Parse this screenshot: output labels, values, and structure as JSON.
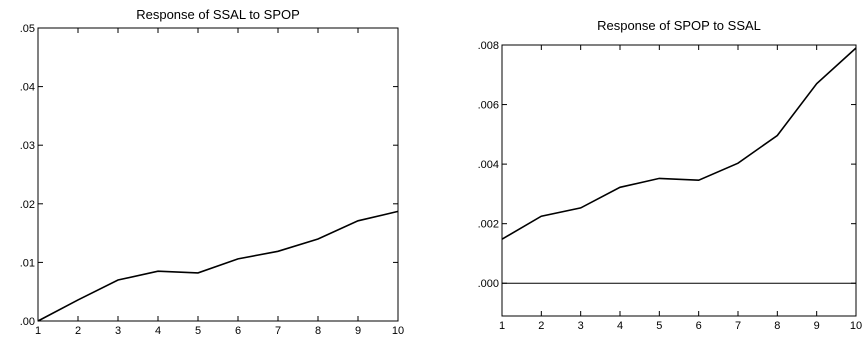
{
  "chart_data": [
    {
      "type": "line",
      "title": "Response of SSAL to SPOP",
      "x": [
        1,
        2,
        3,
        4,
        5,
        6,
        7,
        8,
        9,
        10
      ],
      "x_tick_labels": [
        "1",
        "2",
        "3",
        "4",
        "5",
        "6",
        "7",
        "8",
        "9",
        "10"
      ],
      "y_tick_values": [
        0,
        0.01,
        0.02,
        0.03,
        0.04,
        0.05
      ],
      "y_tick_labels": [
        ".00",
        ".01",
        ".02",
        ".03",
        ".04",
        ".05"
      ],
      "ylim": [
        0,
        0.05
      ],
      "series": [
        {
          "values": [
            0.0,
            0.0036,
            0.007,
            0.0085,
            0.0082,
            0.0106,
            0.0119,
            0.014,
            0.0171,
            0.0187
          ]
        }
      ],
      "zero_line": false,
      "grid": false,
      "line_color": "#000000"
    },
    {
      "type": "line",
      "title": "Response of SPOP to SSAL",
      "x": [
        1,
        2,
        3,
        4,
        5,
        6,
        7,
        8,
        9,
        10
      ],
      "x_tick_labels": [
        "1",
        "2",
        "3",
        "4",
        "5",
        "6",
        "7",
        "8",
        "9",
        "10"
      ],
      "y_tick_values": [
        0,
        0.002,
        0.004,
        0.006,
        0.008
      ],
      "y_tick_labels": [
        ".000",
        ".002",
        ".004",
        ".006",
        ".008"
      ],
      "ylim": [
        -0.0011,
        0.008
      ],
      "series": [
        {
          "values": [
            0.00148,
            0.00225,
            0.00253,
            0.00322,
            0.00352,
            0.00346,
            0.00403,
            0.00496,
            0.0067,
            0.0079
          ]
        }
      ],
      "zero_line": true,
      "grid": false,
      "line_color": "#000000"
    }
  ]
}
